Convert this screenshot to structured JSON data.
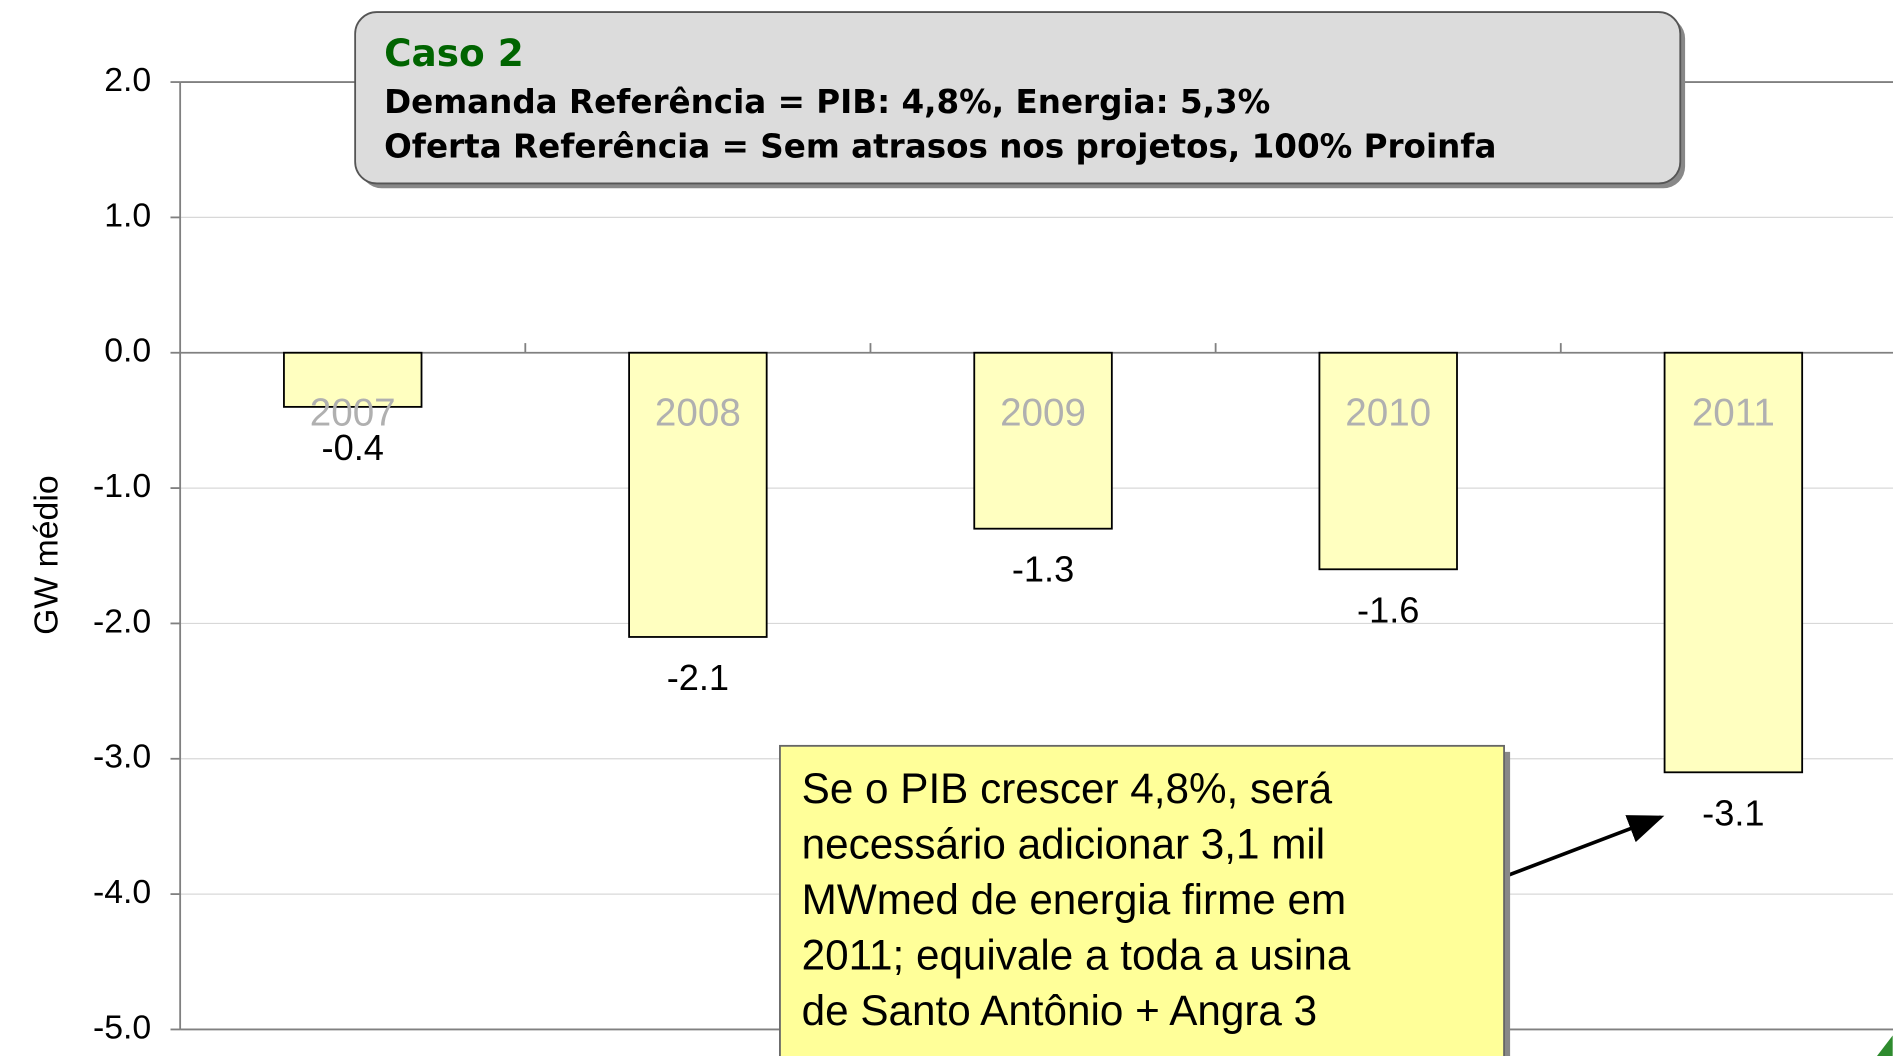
{
  "chart_data": {
    "type": "bar",
    "title": "Caso 2",
    "subtitle": [
      "Demanda Referência = PIB: 4,8%, Energia: 5,3%",
      "Oferta Referência = Sem atrasos nos projetos, 100% Proinfa"
    ],
    "y_label": "GW médio",
    "categories": [
      "2007",
      "2008",
      "2009",
      "2010",
      "2011"
    ],
    "values": [
      -0.4,
      -2.1,
      -1.3,
      -1.6,
      -3.1
    ],
    "color": "#ffffc0",
    "ylim": [
      -5,
      2
    ],
    "yticks": [
      {
        "value": 2,
        "label": "2.0"
      },
      {
        "value": 1,
        "label": "1.0"
      },
      {
        "value": 0,
        "label": "0.0"
      },
      {
        "value": -1,
        "label": "-1.0"
      },
      {
        "value": -2,
        "label": "-2.0"
      },
      {
        "value": -3,
        "label": "-3.0"
      },
      {
        "value": -4,
        "label": "-4.0"
      },
      {
        "value": -5,
        "label": "-5.0"
      }
    ],
    "grid": true,
    "annotation": [
      "Se o PIB crescer 4,8%, será",
      "necessário adicionar 3,1 mil",
      "MWmed de energia firme em",
      "2011; equivale a toda a usina",
      "de Santo Antônio + Angra 3"
    ]
  }
}
